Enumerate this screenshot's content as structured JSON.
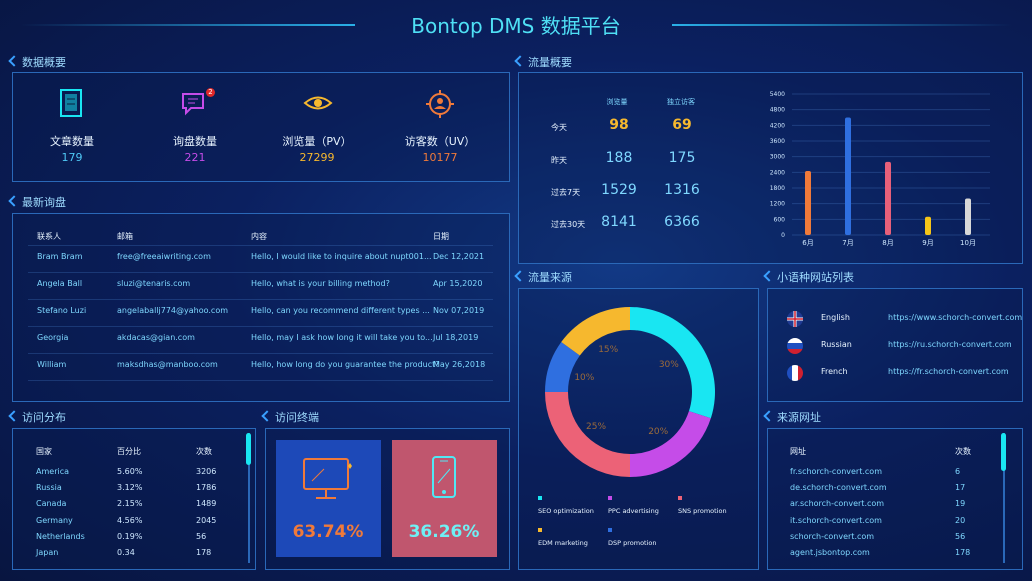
{
  "header": {
    "title": "Bontop DMS 数据平台"
  },
  "overview": {
    "title": "数据概要",
    "items": [
      {
        "label": "文章数量",
        "value": 179
      },
      {
        "label": "询盘数量",
        "value": 221,
        "badge": 2
      },
      {
        "label": "浏览量（PV）",
        "value": 27299
      },
      {
        "label": "访客数（UV）",
        "value": 10177
      }
    ]
  },
  "traffic": {
    "title": "流量概要",
    "columns": [
      "浏览量",
      "独立访客"
    ],
    "rows": [
      {
        "period": "今天",
        "pv": 98,
        "uv": 69
      },
      {
        "period": "昨天",
        "pv": 188,
        "uv": 175
      },
      {
        "period": "过去7天",
        "pv": 1529,
        "uv": 1316
      },
      {
        "period": "过去30天",
        "pv": 8141,
        "uv": 6366
      }
    ],
    "chart": {
      "type": "bar",
      "categories": [
        "6月",
        "7月",
        "8月",
        "9月",
        "10月"
      ],
      "values": [
        2450,
        4500,
        2800,
        700,
        1400
      ],
      "colors": [
        "#f07a3a",
        "#2f6fe0",
        "#e8607a",
        "#f5c518",
        "#d8d8d8"
      ],
      "ylim": [
        0,
        5400
      ],
      "yticks": [
        0,
        600,
        1200,
        1800,
        2400,
        3000,
        3600,
        4200,
        4800,
        5400
      ],
      "grid": true
    }
  },
  "inquiries": {
    "title": "最新询盘",
    "columns": [
      "联系人",
      "邮箱",
      "内容",
      "日期"
    ],
    "rows": [
      [
        "Bram Bram",
        "free@freeaiwriting.com",
        "Hello, I would like to inquire about nupt001...",
        "Dec 12,2021"
      ],
      [
        "Angela Ball",
        "sluzi@tenaris.com",
        "Hello, what is your billing method?",
        "Apr 15,2020"
      ],
      [
        "Stefano Luzi",
        "angelaballj774@yahoo.com",
        "Hello, can you recommend different types ...",
        "Nov 07,2019"
      ],
      [
        "Georgia",
        "akdacas@gian.com",
        "Hello, may I ask how long it will take you to...",
        "Jul 18,2019"
      ],
      [
        "William",
        "maksdhas@manboo.com",
        "Hello, how long do you guarantee the product?",
        "May 26,2018"
      ]
    ]
  },
  "sources": {
    "title": "流量来源",
    "chart": {
      "type": "pie",
      "categories": [
        "SEO optimization",
        "PPC advertising",
        "SNS promotion",
        "EDM marketing",
        "DSP promotion"
      ],
      "values": [
        30,
        20,
        25,
        15,
        10
      ],
      "value_labels": [
        "30%",
        "20%",
        "25%",
        "15%",
        "10%"
      ],
      "colors": [
        "#19e6f2",
        "#c54ce8",
        "#ec6277",
        "#f6b82e",
        "#2f6fe0"
      ]
    }
  },
  "sites": {
    "title": "小语种网站列表",
    "rows": [
      {
        "language": "English",
        "url": "https://www.schorch-convert.com"
      },
      {
        "language": "Russian",
        "url": "https://ru.schorch-convert.com"
      },
      {
        "language": "French",
        "url": "https://fr.schorch-convert.com"
      }
    ]
  },
  "distribution": {
    "title": "访问分布",
    "columns": [
      "国家",
      "百分比",
      "次数"
    ],
    "rows": [
      [
        "America",
        "5.60%",
        3206
      ],
      [
        "Russia",
        "3.12%",
        1786
      ],
      [
        "Canada",
        "2.15%",
        1489
      ],
      [
        "Germany",
        "4.56%",
        2045
      ],
      [
        "Netherlands",
        "0.19%",
        56
      ],
      [
        "Japan",
        "0.34",
        178
      ]
    ]
  },
  "terminals": {
    "title": "访问终端",
    "values": [
      "63.74%",
      "36.26%"
    ]
  },
  "referrers": {
    "title": "来源网址",
    "columns": [
      "网址",
      "次数"
    ],
    "rows": [
      [
        "fr.schorch-convert.com",
        6
      ],
      [
        "de.schorch-convert.com",
        17
      ],
      [
        "ar.schorch-convert.com",
        19
      ],
      [
        "it.schorch-convert.com",
        20
      ],
      [
        "schorch-convert.com",
        56
      ],
      [
        "agent.jsbontop.com",
        178
      ]
    ]
  }
}
